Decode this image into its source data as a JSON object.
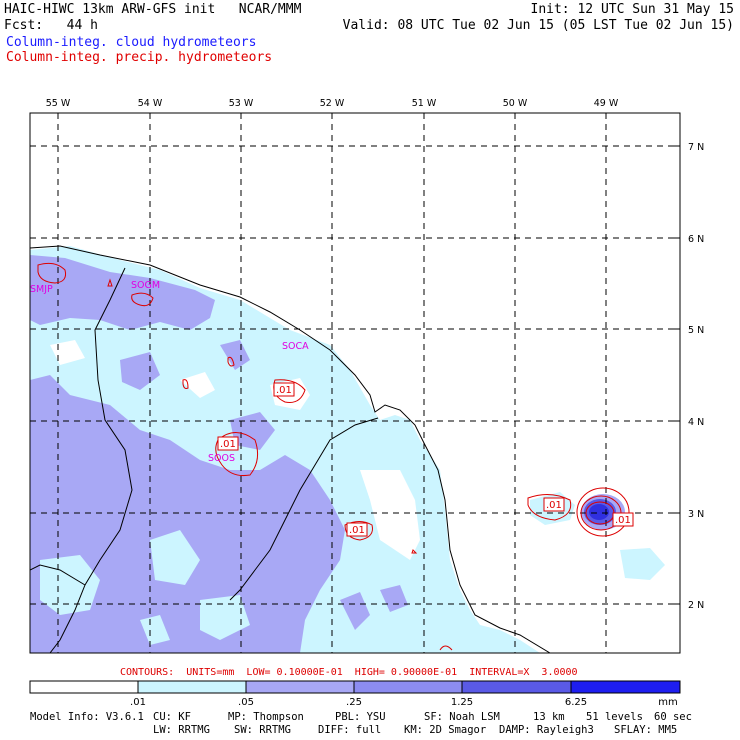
{
  "header": {
    "title_left": "HAIC-HIWC 13km ARW-GFS init   NCAR/MMM",
    "fcst": "Fcst:   44 h",
    "init": "Init: 12 UTC Sun 31 May 15",
    "valid": "Valid: 08 UTC Tue 02 Jun 15 (05 LST Tue 02 Jun 15)",
    "legend_cloud": "Column-integ. cloud hydrometeors",
    "legend_precip": "Column-integ. precip. hydrometeors"
  },
  "colors": {
    "cloud_label": "#1a1aff",
    "precip_label": "#e00000",
    "shade_1": "#ccf5ff",
    "shade_2": "#a8a8f5",
    "shade_3": "#8c8cf0",
    "shade_4": "#5a5ae6",
    "shade_5": "#1e1ef0",
    "contour": "#dd0000",
    "station": "#e000e0"
  },
  "map": {
    "lon_labels": [
      "55 W",
      "54 W",
      "53 W",
      "52 W",
      "51 W",
      "50 W",
      "49 W"
    ],
    "lat_labels": [
      "7 N",
      "6 N",
      "5 N",
      "4 N",
      "3 N",
      "2 N"
    ],
    "stations": [
      "SMJP",
      "SOGM",
      "SOCA",
      "SOOS"
    ],
    "contour_labels": [
      ".01",
      ".01",
      ".01",
      ".01",
      ".01"
    ]
  },
  "contours_info": "CONTOURS:  UNITS=mm  LOW= 0.10000E-01  HIGH= 0.90000E-01  INTERVAL=X  3.0000",
  "colorbar": {
    "ticks": [
      ".01",
      ".05",
      ".25",
      "1.25",
      "6.25"
    ],
    "units": "mm"
  },
  "model_info": {
    "line1": [
      "Model Info: V3.6.1",
      "CU: KF",
      "MP: Thompson",
      "PBL: YSU",
      "SF: Noah LSM",
      "13 km",
      "51 levels",
      "60 sec"
    ],
    "line2": [
      "LW: RRTMG",
      "SW: RRTMG",
      "DIFF: full",
      "KM: 2D Smagor",
      "DAMP: Rayleigh3",
      "SFLAY: MM5"
    ]
  }
}
